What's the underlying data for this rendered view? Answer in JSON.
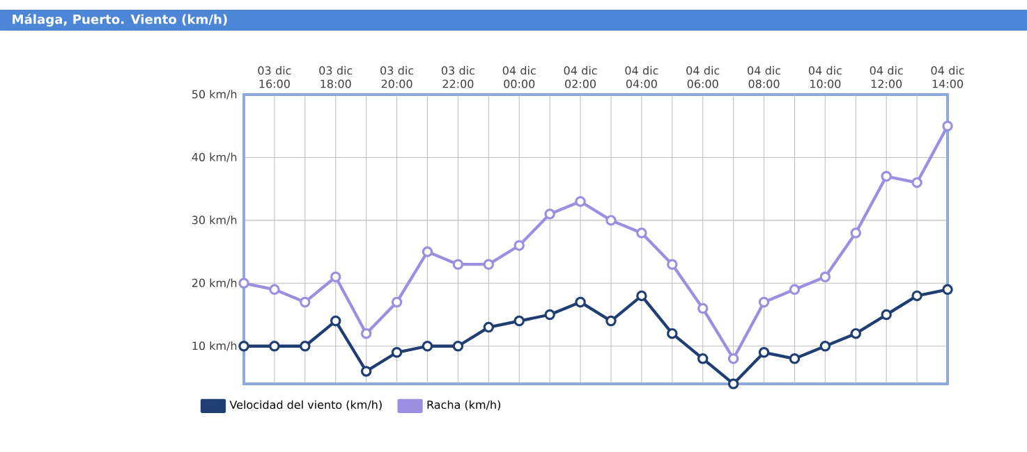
{
  "chart_data": {
    "type": "line",
    "title": "Málaga, Puerto. Viento (km/h)",
    "categories": [
      null,
      "03 dic 16:00",
      null,
      "03 dic 18:00",
      null,
      "03 dic 20:00",
      null,
      "03 dic 22:00",
      null,
      "04 dic 00:00",
      null,
      "04 dic 02:00",
      null,
      "04 dic 04:00",
      null,
      "04 dic 06:00",
      null,
      "04 dic 08:00",
      null,
      "04 dic 10:00",
      null,
      "04 dic 12:00",
      null,
      "04 dic 14:00"
    ],
    "ylim": [
      4,
      50
    ],
    "yticks": [
      {
        "value": 10,
        "label": "10 km/h"
      },
      {
        "value": 20,
        "label": "20 km/h"
      },
      {
        "value": 30,
        "label": "30 km/h"
      },
      {
        "value": 40,
        "label": "40 km/h"
      },
      {
        "value": 50,
        "label": "50 km/h"
      }
    ],
    "series": [
      {
        "name": "Velocidad del viento (km/h)",
        "color": "#1f3f73",
        "values": [
          10,
          10,
          10,
          14,
          6,
          9,
          10,
          10,
          13,
          14,
          15,
          17,
          14,
          18,
          12,
          8,
          4,
          9,
          8,
          10,
          12,
          15,
          18,
          19
        ]
      },
      {
        "name": "Racha (km/h)",
        "color": "#9c8fe0",
        "values": [
          20,
          19,
          17,
          21,
          12,
          17,
          25,
          23,
          23,
          26,
          31,
          33,
          30,
          28,
          23,
          16,
          8,
          17,
          19,
          21,
          28,
          37,
          36,
          45
        ]
      }
    ],
    "grid": true,
    "legend": "bottom left",
    "marker": "circle",
    "line_style": "solid"
  }
}
